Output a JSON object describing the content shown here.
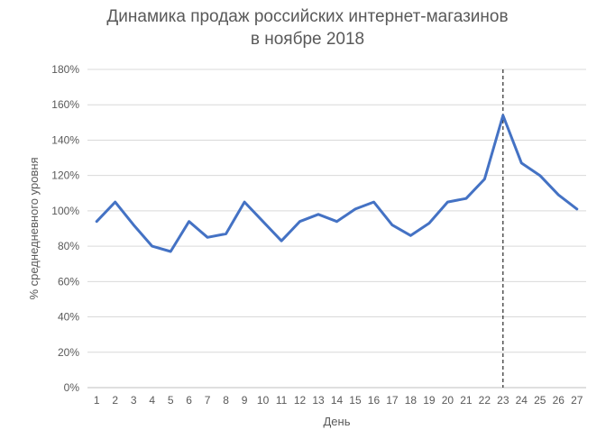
{
  "chart_data": {
    "type": "line",
    "title_line1": "Динамика продаж российских интернет-магазинов",
    "title_line2": "в ноябре 2018",
    "xlabel": "День",
    "ylabel": "% среднедневного уровня",
    "categories": [
      "1",
      "2",
      "3",
      "4",
      "5",
      "6",
      "7",
      "8",
      "9",
      "10",
      "11",
      "12",
      "13",
      "14",
      "15",
      "16",
      "17",
      "18",
      "19",
      "20",
      "21",
      "22",
      "23",
      "24",
      "25",
      "26",
      "27"
    ],
    "yticks": [
      "0%",
      "20%",
      "40%",
      "60%",
      "80%",
      "100%",
      "120%",
      "140%",
      "160%",
      "180%"
    ],
    "ylim": [
      0,
      180
    ],
    "grid": true,
    "series": [
      {
        "values": [
          94,
          105,
          92,
          80,
          77,
          94,
          85,
          87,
          105,
          94,
          83,
          94,
          98,
          94,
          101,
          105,
          92,
          86,
          93,
          105,
          107,
          118,
          154,
          127,
          120,
          109,
          101
        ],
        "color": "#4472C4"
      }
    ],
    "annotation": {
      "type": "vertical-dashed-line",
      "at_category": "23"
    }
  }
}
